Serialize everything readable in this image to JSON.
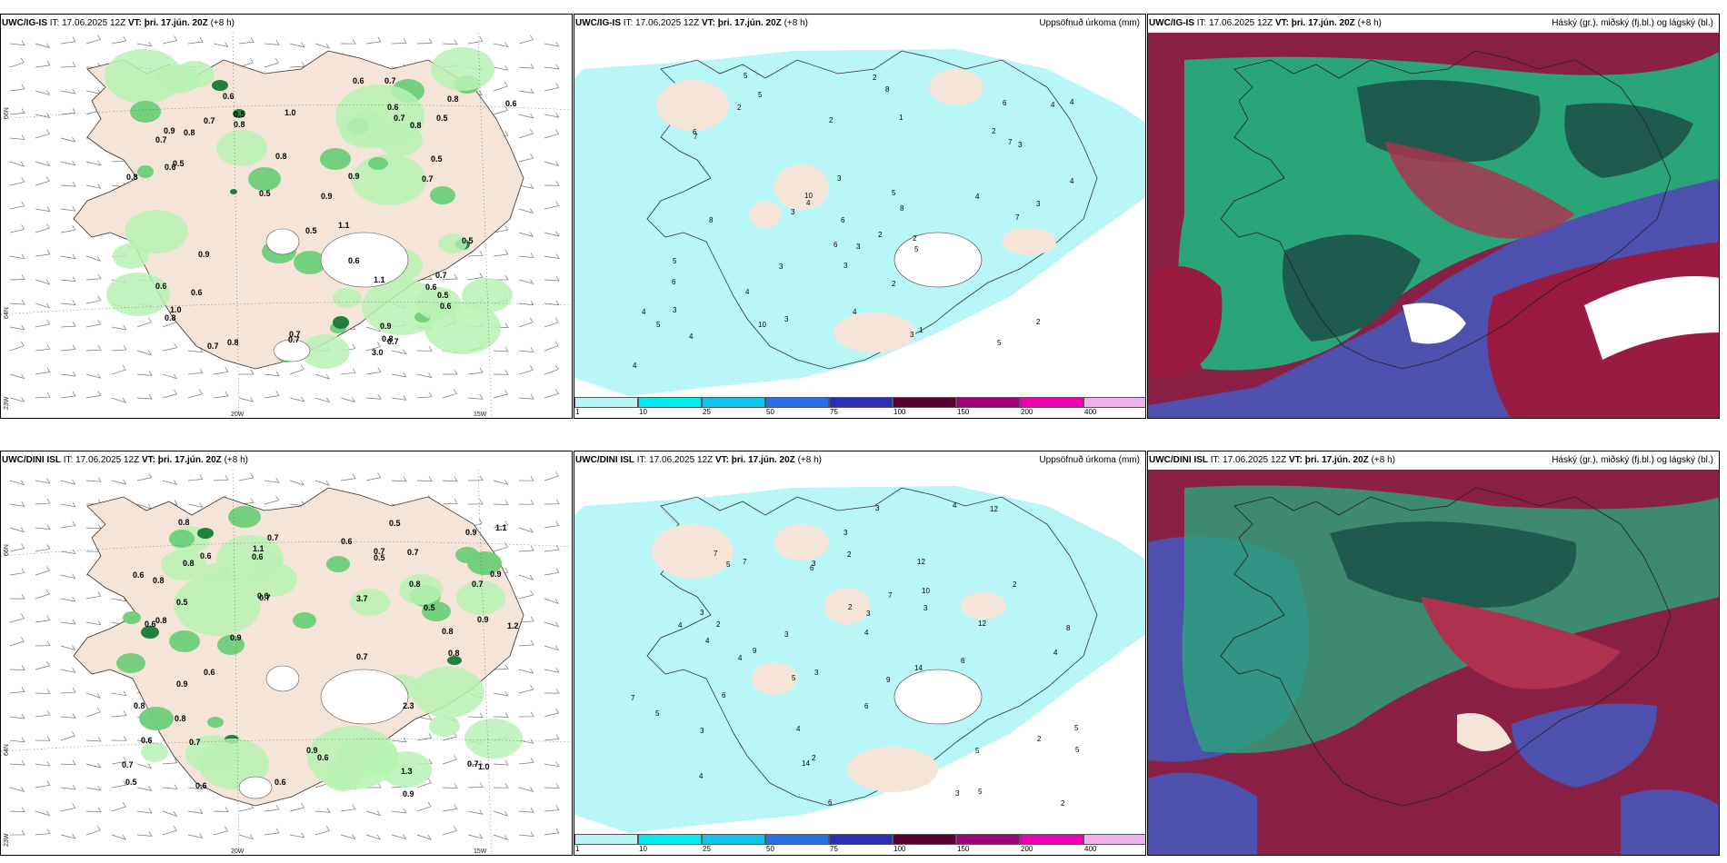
{
  "rows": [
    {
      "model": "UWC/IG-IS",
      "it": "IT: 17.06.2025 12Z",
      "vt_label": "VT:",
      "vt": "þri. 17.jún. 20Z",
      "lead": "(+8 h)",
      "axis_labels": {
        "lat1": "66N",
        "lat2": "64N",
        "lat3": "23W",
        "lon1": "20W",
        "lon2": "15W"
      },
      "precip_values": [
        "0.6",
        "0.5",
        "0.8",
        "0.7",
        "0.5",
        "0.8",
        "0.6",
        "0.5",
        "0.6",
        "0.8",
        "1.0",
        "0.7",
        "0.9",
        "0.6",
        "0.7",
        "1.1",
        "0.7",
        "0.5",
        "0.9",
        "0.8",
        "0.6",
        "0.7",
        "0.5",
        "0.9",
        "0.7",
        "0.6",
        "0.8",
        "1.0",
        "0.6",
        "0.7",
        "0.8",
        "0.9",
        "0.5",
        "0.7",
        "0.6",
        "0.8",
        "3.0",
        "0.7",
        "0.6",
        "0.8",
        "0.9",
        "0.5",
        "0.8",
        "0.5",
        "1.1",
        "0.6",
        "0.7"
      ],
      "accum_values": [
        "2",
        "3",
        "4",
        "5",
        "6",
        "7",
        "8",
        "10",
        "3",
        "4",
        "2",
        "5",
        "6",
        "4",
        "3",
        "8",
        "4",
        "7",
        "2",
        "3",
        "5",
        "10",
        "4",
        "3",
        "6",
        "2",
        "4",
        "5",
        "3",
        "6",
        "2",
        "3",
        "4",
        "5",
        "2",
        "1",
        "3",
        "4",
        "6",
        "5",
        "3",
        "2",
        "4",
        "8",
        "7",
        "3",
        "5",
        "4",
        "2",
        "1"
      ]
    },
    {
      "model": "UWC/DINI ISL",
      "it": "IT: 17.06.2025 12Z",
      "vt_label": "VT:",
      "vt": "þri. 17.jún. 20Z",
      "lead": "(+8 h)",
      "axis_labels": {
        "lat1": "66N",
        "lat2": "64N",
        "lat3": "23W",
        "lon1": "20W",
        "lon2": "15W"
      },
      "precip_values": [
        "0.5",
        "0.9",
        "0.7",
        "0.9",
        "0.6",
        "0.6",
        "1.3",
        "0.5",
        "0.8",
        "0.6",
        "0.7",
        "0.5",
        "0.9",
        "0.8",
        "0.7",
        "1.1",
        "0.6",
        "0.8",
        "1.2",
        "0.7",
        "0.6",
        "0.9",
        "0.8",
        "0.6",
        "0.7",
        "0.5",
        "1.0",
        "0.8",
        "0.7",
        "0.6",
        "0.9",
        "0.8",
        "0.7",
        "0.6",
        "2.3",
        "0.5",
        "0.7",
        "0.6",
        "0.8",
        "1.1",
        "0.9",
        "3.7",
        "0.8",
        "0.6",
        "0.7",
        "0.9",
        "0.6",
        "0.8"
      ],
      "accum_values": [
        "3",
        "2",
        "4",
        "5",
        "7",
        "9",
        "12",
        "14",
        "3",
        "4",
        "8",
        "5",
        "6",
        "10",
        "3",
        "4",
        "5",
        "7",
        "14",
        "3",
        "2",
        "6",
        "12",
        "4",
        "3",
        "5",
        "2",
        "4",
        "7",
        "6",
        "5",
        "3",
        "2",
        "4",
        "9",
        "3",
        "12",
        "5",
        "3",
        "2",
        "4",
        "6",
        "7",
        "3",
        "2",
        "5",
        "6",
        "3",
        "2",
        "4"
      ]
    }
  ],
  "middle_panel": {
    "right_label": "Uppsöfnuð úrkoma (mm)"
  },
  "right_panel": {
    "right_label": "Háský (gr.), miðský (fj.bl.) og lágský (bl.)"
  },
  "colorbar": {
    "labels": [
      "1",
      "10",
      "25",
      "50",
      "75",
      "100",
      "150",
      "200",
      "400"
    ],
    "colors": [
      "#b8f4f6",
      "#00ebee",
      "#0cc4ec",
      "#2a6fe6",
      "#2b2fb8",
      "#5a0030",
      "#a0007a",
      "#f000b4",
      "#f0b0ec"
    ]
  },
  "colors": {
    "land": "#f5e5d8",
    "precip_light": "#b9f2b4",
    "precip_mid": "#6dcf7a",
    "precip_dark": "#167a34",
    "cyan_precip": "#b8f6f8",
    "cloud_base": "#4d50ad",
    "cloud_green": "#2aa57a",
    "cloud_dark": "#1e5a4e",
    "cloud_red": "#9a1a40"
  }
}
